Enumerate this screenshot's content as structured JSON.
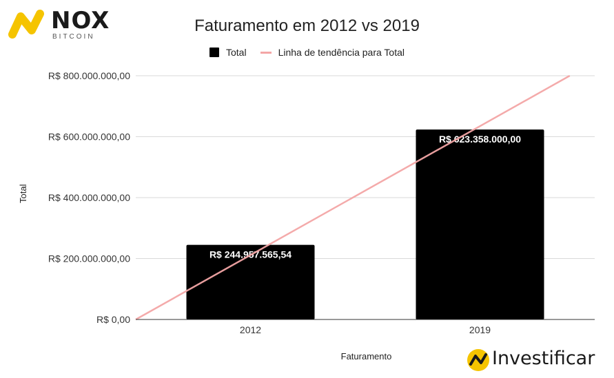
{
  "brand_top": {
    "name": "NOX",
    "sub": "BITCOIN",
    "color": "#f5c400"
  },
  "brand_bottom": {
    "name": "Investificar",
    "color": "#f5c400"
  },
  "legend": {
    "total": "Total",
    "trend": "Linha de tendência para Total"
  },
  "chart_data": {
    "type": "bar",
    "title": "Faturamento em 2012 vs 2019",
    "xlabel": "Faturamento",
    "ylabel": "Total",
    "categories": [
      "2012",
      "2019"
    ],
    "series": [
      {
        "name": "Total",
        "values": [
          244957565.54,
          623358000.0
        ],
        "color": "#000000"
      },
      {
        "name": "Linha de tendência para Total",
        "type": "trendline",
        "color": "#f4a6a6"
      }
    ],
    "data_labels": [
      "R$ 244.957.565,54",
      "R$ 623.358.000,00"
    ],
    "ylim": [
      0,
      800000000
    ],
    "yticks": [
      0,
      200000000,
      400000000,
      600000000,
      800000000
    ],
    "ytick_labels": [
      "R$ 0,00",
      "R$ 200.000.000,00",
      "R$ 400.000.000,00",
      "R$ 600.000.000,00",
      "R$ 800.000.000,00"
    ],
    "grid": true,
    "legend_position": "top"
  }
}
